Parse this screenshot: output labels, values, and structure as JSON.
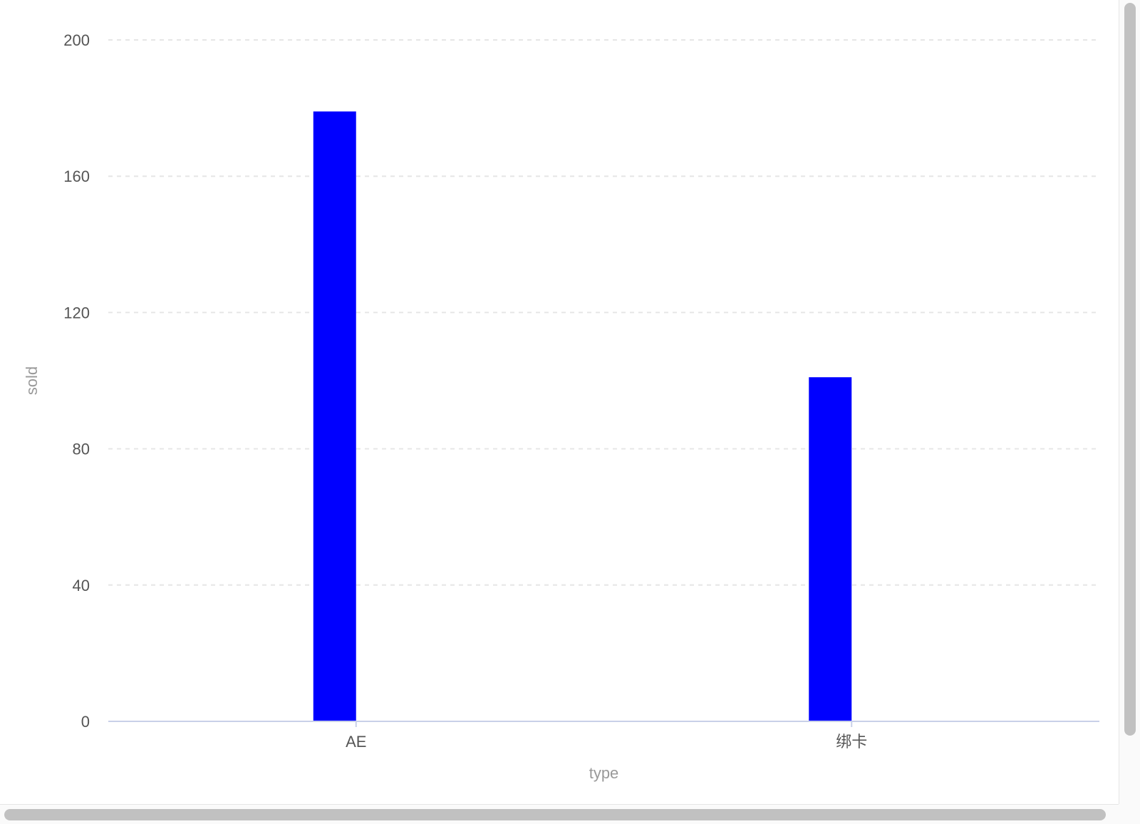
{
  "chart_data": {
    "type": "bar",
    "categories": [
      "AE",
      "绑卡"
    ],
    "series": [
      {
        "values": [
          179,
          101
        ]
      }
    ],
    "xlabel": "type",
    "ylabel": "sold",
    "ylim": [
      0,
      200
    ],
    "yticks": [
      0,
      40,
      80,
      120,
      160,
      200
    ],
    "bar_color": "#0000ff",
    "grid": true,
    "grid_color": "#e6e6e6",
    "axis_color": "#c8d0e8"
  }
}
